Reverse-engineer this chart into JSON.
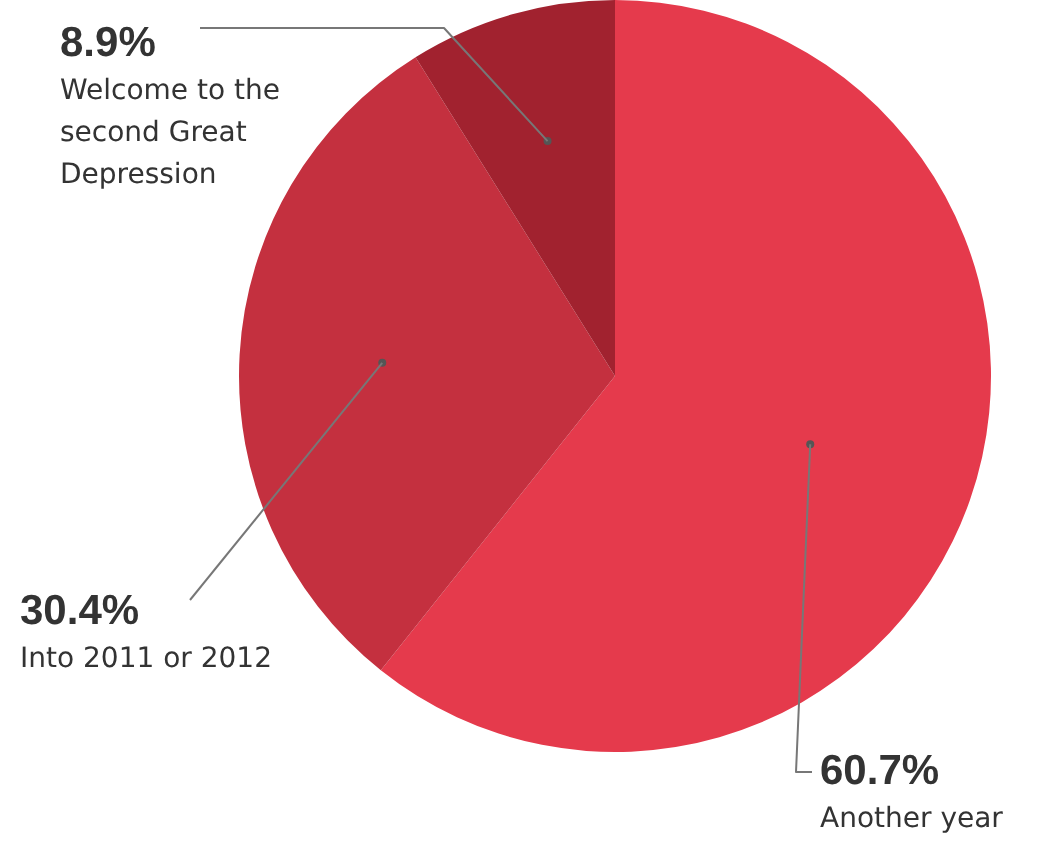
{
  "chart_data": {
    "type": "pie",
    "categories": [
      "Another year",
      "Into 2011 or 2012",
      "Welcome to the second Great Depression"
    ],
    "values": [
      60.7,
      30.4,
      8.9
    ],
    "colors": [
      "#e53a4c",
      "#c4303f",
      "#a1222f"
    ],
    "value_labels": [
      "60.7%",
      "30.4%",
      "8.9%"
    ],
    "legend": false
  }
}
